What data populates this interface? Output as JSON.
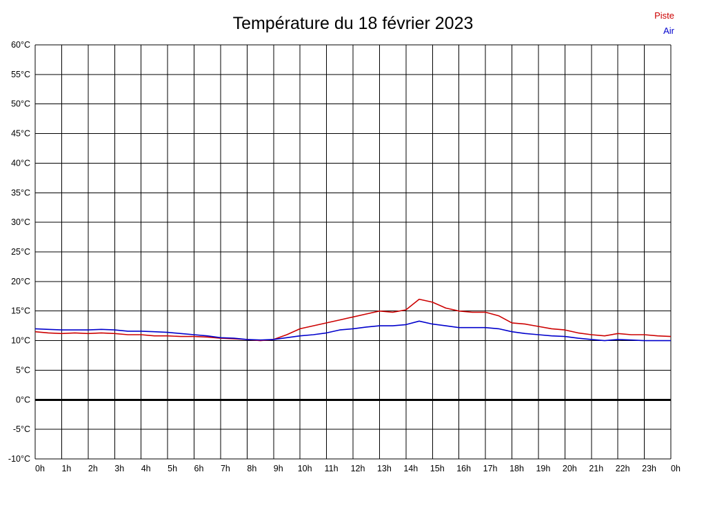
{
  "title": "Température du 18 février 2023",
  "legend": [
    {
      "label": "Piste",
      "color": "#cc0000"
    },
    {
      "label": "Air",
      "color": "#0000cc"
    }
  ],
  "chart_data": {
    "type": "line",
    "title": "Température du 18 février 2023",
    "xlabel": "",
    "ylabel": "",
    "x_unit": "hours",
    "y_unit": "°C",
    "xlim": [
      0,
      24
    ],
    "ylim": [
      -10,
      60
    ],
    "grid": true,
    "zero_line": true,
    "legend_position": "top-right",
    "x_ticks": [
      0,
      1,
      2,
      3,
      4,
      5,
      6,
      7,
      8,
      9,
      10,
      11,
      12,
      13,
      14,
      15,
      16,
      17,
      18,
      19,
      20,
      21,
      22,
      23,
      24
    ],
    "x_tick_labels": [
      "0h",
      "1h",
      "2h",
      "3h",
      "4h",
      "5h",
      "6h",
      "7h",
      "8h",
      "9h",
      "10h",
      "11h",
      "12h",
      "13h",
      "14h",
      "15h",
      "16h",
      "17h",
      "18h",
      "19h",
      "20h",
      "21h",
      "22h",
      "23h",
      "0h"
    ],
    "y_ticks": [
      60,
      55,
      50,
      45,
      40,
      35,
      30,
      25,
      20,
      15,
      10,
      5,
      0,
      -5,
      -10
    ],
    "y_tick_labels": [
      "60°C",
      "55°C",
      "50°C",
      "45°C",
      "40°C",
      "35°C",
      "30°C",
      "25°C",
      "20°C",
      "15°C",
      "10°C",
      "5°C",
      "0°C",
      "-5°C",
      "-10°C"
    ],
    "x": [
      0,
      0.5,
      1,
      1.5,
      2,
      2.5,
      3,
      3.5,
      4,
      4.5,
      5,
      5.5,
      6,
      6.5,
      7,
      7.5,
      8,
      8.5,
      9,
      9.5,
      10,
      10.5,
      11,
      11.5,
      12,
      12.5,
      13,
      13.5,
      14,
      14.5,
      15,
      15.5,
      16,
      16.5,
      17,
      17.5,
      18,
      18.5,
      19,
      19.5,
      20,
      20.5,
      21,
      21.5,
      22,
      22.5,
      23,
      23.5,
      24
    ],
    "series": [
      {
        "name": "Piste",
        "color": "#cc0000",
        "values": [
          11.5,
          11.3,
          11.2,
          11.3,
          11.2,
          11.3,
          11.2,
          11.0,
          11.0,
          10.8,
          10.8,
          10.7,
          10.7,
          10.6,
          10.4,
          10.3,
          10.2,
          10.0,
          10.2,
          11.0,
          12.0,
          12.5,
          13.0,
          13.5,
          14.0,
          14.5,
          15.0,
          14.8,
          15.2,
          17.0,
          16.5,
          15.5,
          15.0,
          14.8,
          14.8,
          14.2,
          13.0,
          12.8,
          12.4,
          12.0,
          11.8,
          11.3,
          11.0,
          10.8,
          11.2,
          11.0,
          11.0,
          10.8,
          10.7
        ]
      },
      {
        "name": "Air",
        "color": "#0000cc",
        "values": [
          12.0,
          11.9,
          11.8,
          11.8,
          11.8,
          11.9,
          11.8,
          11.6,
          11.6,
          11.5,
          11.4,
          11.2,
          11.0,
          10.8,
          10.5,
          10.4,
          10.2,
          10.1,
          10.2,
          10.5,
          10.8,
          11.0,
          11.3,
          11.8,
          12.0,
          12.3,
          12.5,
          12.5,
          12.7,
          13.3,
          12.8,
          12.5,
          12.2,
          12.2,
          12.2,
          12.0,
          11.5,
          11.2,
          11.0,
          10.8,
          10.7,
          10.4,
          10.2,
          10.0,
          10.2,
          10.1,
          10.0,
          10.0,
          10.0
        ]
      }
    ]
  }
}
